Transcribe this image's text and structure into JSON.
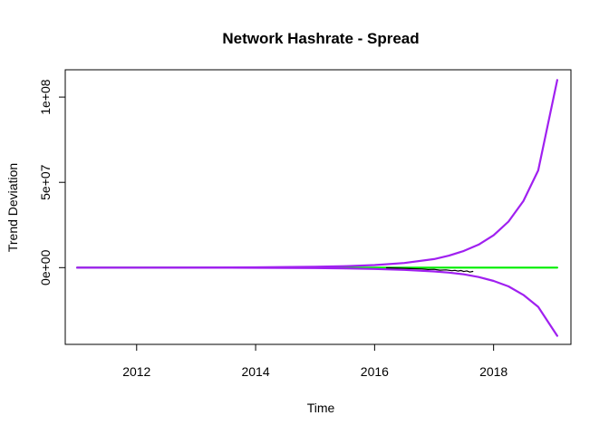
{
  "chart_data": {
    "type": "line",
    "title": "Network Hashrate - Spread",
    "xlabel": "Time",
    "ylabel": "Trend Deviation",
    "xlim": [
      2010.8,
      2019.3
    ],
    "ylim": [
      -45000000,
      116000000
    ],
    "x_ticks": [
      2012,
      2014,
      2016,
      2018
    ],
    "x_tick_labels": [
      "2012",
      "2014",
      "2016",
      "2018"
    ],
    "y_ticks": [
      0,
      50000000,
      100000000
    ],
    "y_tick_labels": [
      "0e+00",
      "5e+07",
      "1e+08"
    ],
    "grid": false,
    "legend": "none",
    "colors": {
      "upper": "#A020F0",
      "lower": "#A020F0",
      "trend": "#00EE00",
      "actual": "#000000"
    },
    "series": [
      {
        "key": "trend",
        "x": [
          2011.0,
          2019.07
        ],
        "y": [
          0,
          0
        ]
      },
      {
        "key": "upper",
        "x": [
          2011.0,
          2012.0,
          2013.0,
          2014.0,
          2015.0,
          2015.5,
          2016.0,
          2016.5,
          2017.0,
          2017.25,
          2017.5,
          2017.75,
          2018.0,
          2018.25,
          2018.5,
          2018.75,
          2019.07
        ],
        "y": [
          0,
          20000,
          60000,
          150000,
          500000,
          850000,
          1500000,
          2700000,
          5000000,
          7000000,
          9800000,
          13500000,
          19000000,
          27000000,
          39000000,
          57000000,
          110000000
        ]
      },
      {
        "key": "lower",
        "x": [
          2011.0,
          2012.0,
          2013.0,
          2014.0,
          2015.0,
          2015.5,
          2016.0,
          2016.5,
          2017.0,
          2017.25,
          2017.5,
          2017.75,
          2018.0,
          2018.25,
          2018.5,
          2018.75,
          2019.07
        ],
        "y": [
          0,
          -10000,
          -30000,
          -80000,
          -250000,
          -450000,
          -800000,
          -1300000,
          -2200000,
          -2900000,
          -3900000,
          -5500000,
          -7800000,
          -11000000,
          -16000000,
          -23000000,
          -40000000
        ]
      },
      {
        "key": "actual",
        "x": [
          2016.2,
          2016.4,
          2016.6,
          2016.8,
          2016.9,
          2017.0,
          2017.1,
          2017.2,
          2017.3,
          2017.35,
          2017.4,
          2017.45,
          2017.5,
          2017.55,
          2017.6,
          2017.65
        ],
        "y": [
          -100000,
          -300000,
          -600000,
          -800000,
          -1100000,
          -1000000,
          -1500000,
          -1300000,
          -1800000,
          -1600000,
          -2000000,
          -1700000,
          -2300000,
          -1900000,
          -2600000,
          -2200000
        ]
      }
    ]
  }
}
